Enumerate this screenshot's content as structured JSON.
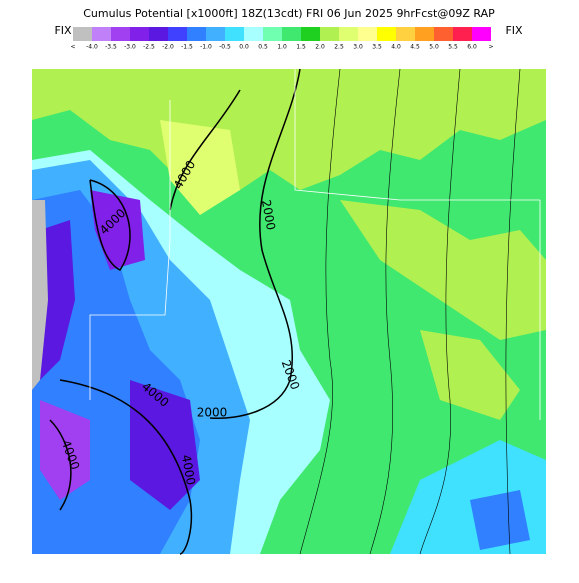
{
  "header": {
    "title": "Cumulus Potential [x1000ft] 18Z(13cdt) FRI 06 Jun 2025 9hrFcst@09Z RAP",
    "fix_left": "FIX",
    "fix_right": "FIX"
  },
  "colorbar": {
    "labels": [
      "<",
      "-4.0",
      "-3.5",
      "-3.0",
      "-2.5",
      "-2.0",
      "-1.5",
      "-1.0",
      "-0.5",
      "0.0",
      "0.5",
      "1.0",
      "1.5",
      "2.0",
      "2.5",
      "3.0",
      "3.5",
      "4.0",
      "4.5",
      "5.0",
      "5.5",
      "6.0",
      ">"
    ],
    "colors": [
      "#c0c0c0",
      "#c080f8",
      "#a040f0",
      "#8020e8",
      "#5a18e0",
      "#4040ff",
      "#3080ff",
      "#40b0ff",
      "#40e0ff",
      "#a8ffff",
      "#70ffb0",
      "#40e870",
      "#20d020",
      "#b0f050",
      "#e0ff70",
      "#ffff90",
      "#ffff00",
      "#ffd040",
      "#ffa020",
      "#ff6030",
      "#ff2050",
      "#ff00ff"
    ]
  },
  "map": {
    "contour_labels": [
      "4000",
      "4000",
      "2000",
      "2000",
      "4000",
      "2000",
      "4000",
      "4000"
    ]
  }
}
